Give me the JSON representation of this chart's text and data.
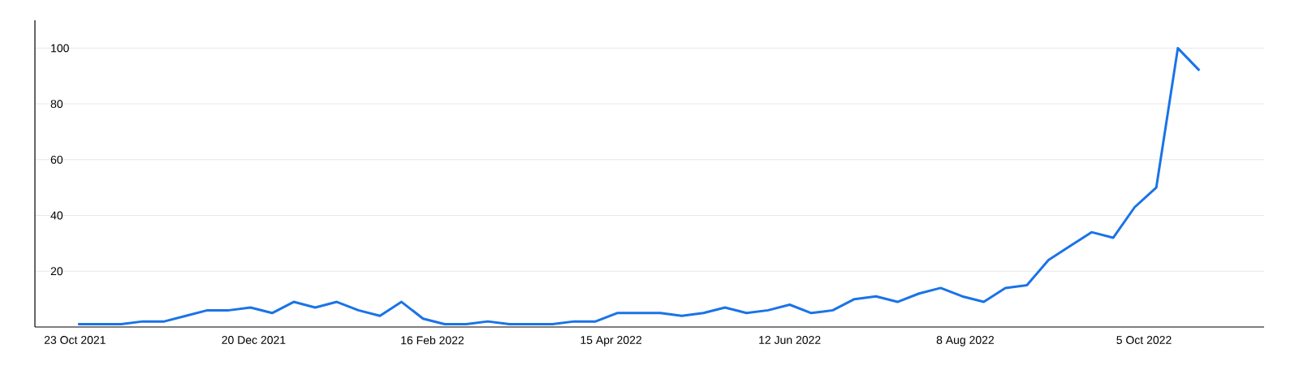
{
  "chart_data": {
    "type": "line",
    "x": [
      "2021-10-24",
      "2021-10-31",
      "2021-11-07",
      "2021-11-14",
      "2021-11-21",
      "2021-11-28",
      "2021-12-05",
      "2021-12-12",
      "2021-12-19",
      "2021-12-26",
      "2022-01-02",
      "2022-01-09",
      "2022-01-16",
      "2022-01-23",
      "2022-01-30",
      "2022-02-06",
      "2022-02-13",
      "2022-02-20",
      "2022-02-27",
      "2022-03-06",
      "2022-03-13",
      "2022-03-20",
      "2022-03-27",
      "2022-04-03",
      "2022-04-10",
      "2022-04-17",
      "2022-04-24",
      "2022-05-01",
      "2022-05-08",
      "2022-05-15",
      "2022-05-22",
      "2022-05-29",
      "2022-06-05",
      "2022-06-12",
      "2022-06-19",
      "2022-06-26",
      "2022-07-03",
      "2022-07-10",
      "2022-07-17",
      "2022-07-24",
      "2022-07-31",
      "2022-08-07",
      "2022-08-14",
      "2022-08-21",
      "2022-08-28",
      "2022-09-04",
      "2022-09-11",
      "2022-09-18",
      "2022-09-25",
      "2022-10-02",
      "2022-10-09",
      "2022-10-16",
      "2022-10-23"
    ],
    "values": [
      1,
      1,
      1,
      2,
      2,
      4,
      6,
      6,
      7,
      5,
      9,
      7,
      9,
      6,
      4,
      9,
      3,
      1,
      1,
      2,
      1,
      1,
      1,
      2,
      2,
      5,
      5,
      5,
      4,
      5,
      7,
      5,
      6,
      8,
      5,
      6,
      10,
      11,
      9,
      12,
      14,
      11,
      9,
      14,
      15,
      24,
      29,
      34,
      32,
      43,
      50,
      100,
      92
    ],
    "color": "#1a73e8",
    "xlim": [
      "2021-10-10",
      "2022-11-13"
    ],
    "ylim": [
      0,
      110
    ],
    "xticks": [
      {
        "value": "2021-10-23",
        "label": "23 Oct 2021"
      },
      {
        "value": "2021-12-20",
        "label": "20 Dec 2021"
      },
      {
        "value": "2022-02-16",
        "label": "16 Feb 2022"
      },
      {
        "value": "2022-04-15",
        "label": "15 Apr 2022"
      },
      {
        "value": "2022-06-12",
        "label": "12 Jun 2022"
      },
      {
        "value": "2022-08-08",
        "label": "8 Aug 2022"
      },
      {
        "value": "2022-10-05",
        "label": "5 Oct 2022"
      }
    ],
    "yticks": [
      20,
      40,
      60,
      80,
      100
    ],
    "grid": "y",
    "marker": "none",
    "line_style": "solid"
  }
}
